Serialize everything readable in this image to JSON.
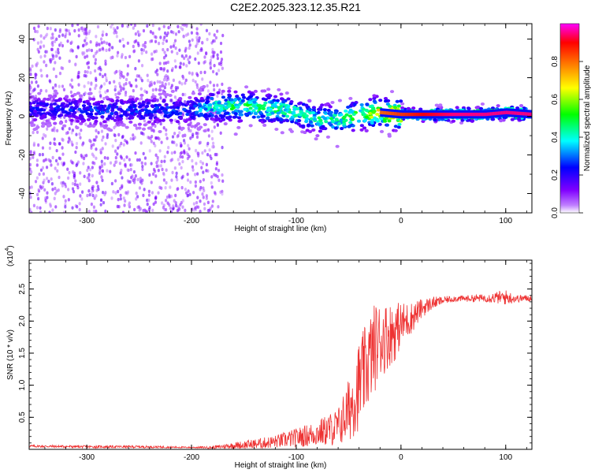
{
  "figure": {
    "title": "C2E2.2025.323.12.35.R21"
  },
  "chart_data": [
    {
      "type": "heatmap",
      "title": "",
      "xlabel": "Height of straight line (km)",
      "ylabel": "Frequency (Hz)",
      "xlim": [
        -355,
        125
      ],
      "ylim": [
        -50,
        48
      ],
      "xticks": [
        -300,
        -200,
        -100,
        0,
        100
      ],
      "xtick_labels": [
        "-300",
        "-200",
        "-100",
        "0",
        "100"
      ],
      "yticks": [
        -40,
        -20,
        0,
        20,
        40
      ],
      "ytick_labels": [
        "-40",
        "-20",
        "0",
        "20",
        "40"
      ],
      "colorbar": {
        "label": "Normalized spectral amplitude",
        "range": [
          0,
          1
        ],
        "ticks": [
          0.0,
          0.2,
          0.4,
          0.6,
          0.8
        ],
        "tick_labels": [
          "0.0",
          "0.2",
          "0.4",
          "0.6",
          "0.8"
        ],
        "colormap": [
          "#ffffff",
          "#8000ff",
          "#0000ff",
          "#00ffff",
          "#00ff00",
          "#ffff00",
          "#ff8000",
          "#ff0000",
          "#ff00ff"
        ]
      },
      "ridge": {
        "description_x": [
          -355,
          -300,
          -250,
          -200,
          -180,
          -150,
          -120,
          -100,
          -80,
          -60,
          -40,
          -20,
          0,
          20,
          50,
          80,
          100,
          125
        ],
        "center_hz": [
          4,
          3,
          3,
          3,
          5,
          5,
          4,
          2,
          -1,
          -2,
          1,
          2,
          1,
          1,
          1,
          1,
          2,
          1
        ],
        "peak_amplitude": [
          0.25,
          0.3,
          0.3,
          0.3,
          0.5,
          0.55,
          0.55,
          0.5,
          0.5,
          0.5,
          0.6,
          0.8,
          0.85,
          0.9,
          0.95,
          0.95,
          0.95,
          0.95
        ]
      }
    },
    {
      "type": "line",
      "title": "",
      "xlabel": "Height of straight line (km)",
      "ylabel": "SNR (10 * v/v)",
      "y_multiplier_label": "(x10",
      "y_multiplier_exp": "4",
      "y_multiplier_close": ")",
      "xlim": [
        -355,
        125
      ],
      "ylim": [
        0,
        2.95
      ],
      "xticks": [
        -300,
        -200,
        -100,
        0,
        100
      ],
      "xtick_labels": [
        "-300",
        "-200",
        "-100",
        "0",
        "100"
      ],
      "yticks": [
        0.5,
        1.0,
        1.5,
        2.0,
        2.5
      ],
      "ytick_labels": [
        "0.5",
        "1.0",
        "1.5",
        "2.0",
        "2.5"
      ],
      "series": [
        {
          "name": "SNR",
          "color": "#ee3333",
          "x": [
            -355,
            -300,
            -250,
            -200,
            -180,
            -160,
            -140,
            -120,
            -100,
            -80,
            -60,
            -50,
            -45,
            -40,
            -35,
            -30,
            -25,
            -20,
            -15,
            -10,
            -5,
            0,
            10,
            20,
            30,
            40,
            50,
            60,
            80,
            100,
            110,
            125
          ],
          "y": [
            0.05,
            0.04,
            0.04,
            0.03,
            0.03,
            0.06,
            0.08,
            0.12,
            0.18,
            0.25,
            0.35,
            0.6,
            0.8,
            1.0,
            1.2,
            1.4,
            1.6,
            1.7,
            1.75,
            1.8,
            1.85,
            1.95,
            2.05,
            2.2,
            2.28,
            2.32,
            2.35,
            2.35,
            2.36,
            2.37,
            2.35,
            2.36
          ],
          "noise": [
            0.02,
            0.02,
            0.02,
            0.01,
            0.02,
            0.05,
            0.08,
            0.1,
            0.15,
            0.2,
            0.3,
            0.5,
            0.6,
            0.7,
            0.7,
            0.7,
            0.7,
            0.6,
            0.55,
            0.5,
            0.45,
            0.35,
            0.25,
            0.15,
            0.1,
            0.06,
            0.05,
            0.05,
            0.06,
            0.12,
            0.06,
            0.05
          ]
        }
      ]
    }
  ]
}
